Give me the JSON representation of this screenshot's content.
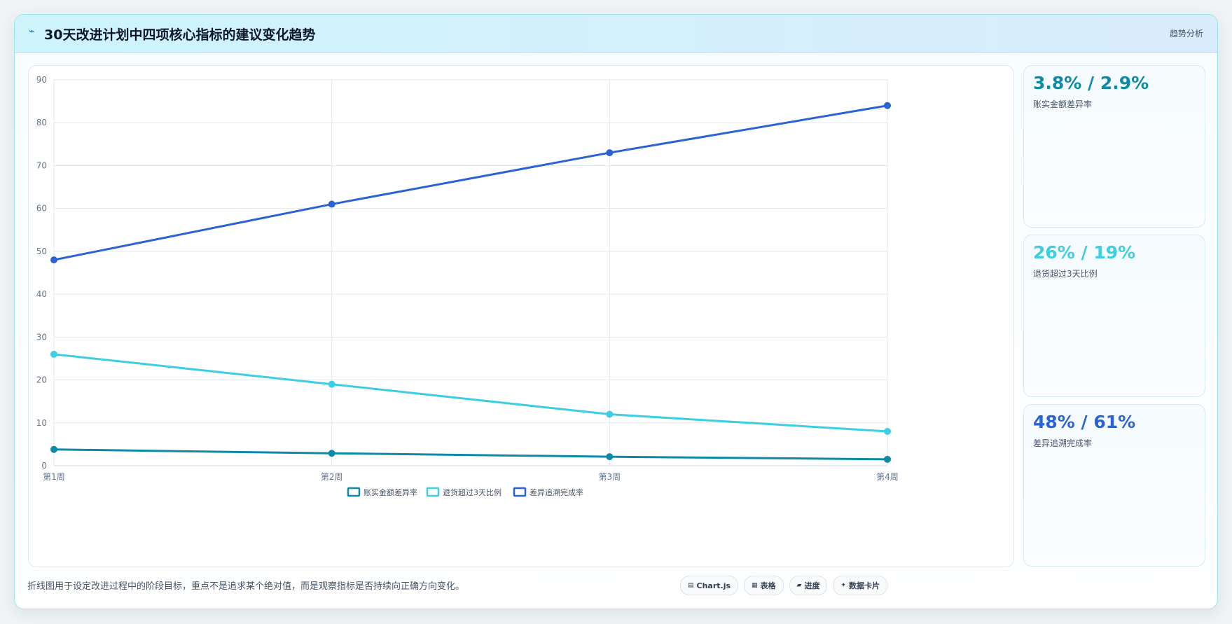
{
  "header": {
    "icon": "⌁",
    "title": "30天改进计划中四项核心指标的建议变化趋势",
    "tag": "趋势分析"
  },
  "chart_data": {
    "type": "line",
    "categories": [
      "第1周",
      "第2周",
      "第3周",
      "第4周"
    ],
    "ylim": [
      0,
      90
    ],
    "yticks": [
      0,
      10,
      20,
      30,
      40,
      50,
      60,
      70,
      80,
      90
    ],
    "grid": true,
    "legend_position": "bottom",
    "series": [
      {
        "name": "账实金额差异率",
        "values": [
          3.8,
          2.9,
          2.1,
          1.5
        ],
        "color": "#0e8aa6"
      },
      {
        "name": "退货超过3天比例",
        "values": [
          26,
          19,
          12,
          8
        ],
        "color": "#3ccfe4"
      },
      {
        "name": "差异追溯完成率",
        "values": [
          48,
          61,
          73,
          84
        ],
        "color": "#2a63d4"
      }
    ]
  },
  "metrics": [
    {
      "value": "3.8% / 2.9%",
      "label": "账实金额差异率",
      "color": "#0e8aa6"
    },
    {
      "value": "26% / 19%",
      "label": "退货超过3天比例",
      "color": "#3ccfe4"
    },
    {
      "value": "48% / 61%",
      "label": "差异追溯完成率",
      "color": "#2a63d4"
    }
  ],
  "footer": {
    "note": "折线图用于设定改进过程中的阶段目标，重点不是追求某个绝对值，而是观察指标是否持续向正确方向变化。"
  },
  "tools": [
    {
      "icon": "▤",
      "label": "Chart.js"
    },
    {
      "icon": "▦",
      "label": "表格"
    },
    {
      "icon": "▰",
      "label": "进度"
    },
    {
      "icon": "✦",
      "label": "数据卡片"
    }
  ]
}
